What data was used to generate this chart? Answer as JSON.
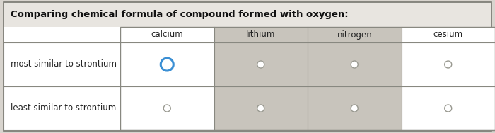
{
  "title": "Comparing chemical formula of compound formed with oxygen:",
  "columns": [
    "calcium",
    "lithium",
    "nitrogen",
    "cesium"
  ],
  "rows": [
    "most similar to strontium",
    "least similar to strontium"
  ],
  "selected_cell": [
    0,
    0
  ],
  "background_color": "#d8d4ce",
  "outer_bg": "#e8e5e0",
  "table_bg": "#ffffff",
  "col_shade_bg": "#c8c4bc",
  "border_color": "#888880",
  "title_fontsize": 9.5,
  "cell_fontsize": 8.5,
  "row_label_fontsize": 8.5,
  "outer_border_color": "#777770",
  "selected_circle_color": "#3a8fd4",
  "unselected_circle_color": "#999990",
  "title_color": "#111111",
  "cell_text_color": "#222222"
}
